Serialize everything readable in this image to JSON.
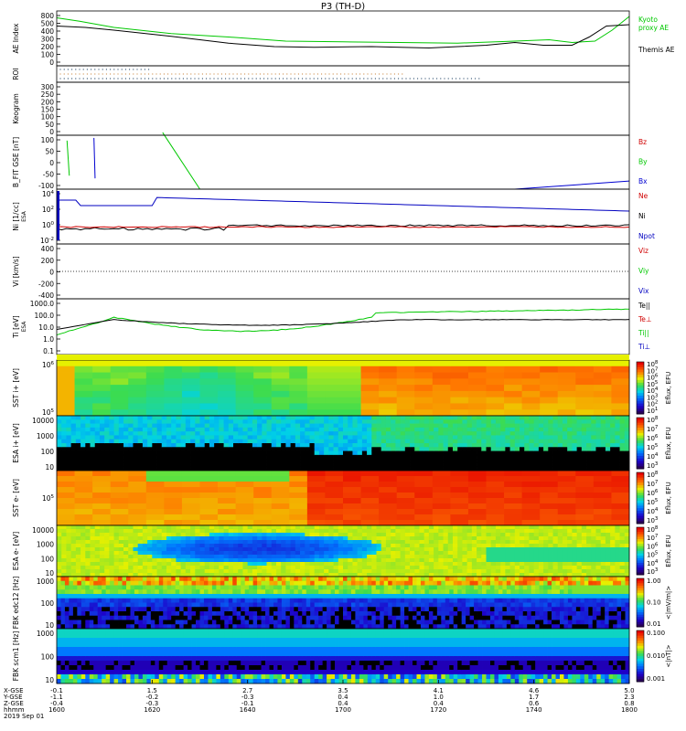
{
  "chart_data": {
    "type": "multi-panel",
    "title": "P3 (TH-D)",
    "xaxis": {
      "labels_left": [
        "X-GSE",
        "Y-GSE",
        "Z-GSE",
        "hhmm",
        "2019 Sep 01"
      ],
      "ticks": [
        {
          "x": 1600,
          "rows": [
            "-0.1",
            "-1.1",
            "-0.4",
            "1600"
          ]
        },
        {
          "x": 1620,
          "rows": [
            "1.5",
            "-0.2",
            "-0.3",
            "1620"
          ]
        },
        {
          "x": 1640,
          "rows": [
            "2.7",
            "-0.3",
            "-0.1",
            "1640"
          ]
        },
        {
          "x": 1700,
          "rows": [
            "3.5",
            "0.4",
            "0.4",
            "1700"
          ]
        },
        {
          "x": 1720,
          "rows": [
            "4.1",
            "1.0",
            "0.4",
            "1720"
          ]
        },
        {
          "x": 1740,
          "rows": [
            "4.6",
            "1.7",
            "0.6",
            "1740"
          ]
        },
        {
          "x": 1800,
          "rows": [
            "5.0",
            "2.3",
            "0.8",
            "1800"
          ]
        }
      ]
    },
    "panels": [
      {
        "id": "ae",
        "type": "line",
        "ylabel": "AE Index",
        "yticks": [
          "800",
          "500",
          "400",
          "300",
          "200",
          "100",
          "0"
        ],
        "series": [
          {
            "name": "Kyoto proxy AE",
            "color": "#00c800",
            "x": [
              0,
              0.04,
              0.1,
              0.2,
              0.3,
              0.4,
              0.5,
              0.6,
              0.7,
              0.8,
              0.86,
              0.9,
              0.94,
              0.97,
              1
            ],
            "y": [
              700,
              650,
              560,
              470,
              420,
              360,
              350,
              340,
              330,
              360,
              380,
              340,
              360,
              520,
              720
            ]
          },
          {
            "name": "Themis AE",
            "color": "#000000",
            "x": [
              0,
              0.05,
              0.1,
              0.2,
              0.3,
              0.38,
              0.45,
              0.55,
              0.65,
              0.75,
              0.8,
              0.85,
              0.9,
              0.93,
              0.96,
              1
            ],
            "y": [
              580,
              560,
              520,
              430,
              330,
              280,
              270,
              280,
              260,
              300,
              340,
              300,
              300,
              420,
              580,
              600
            ]
          }
        ]
      },
      {
        "id": "roi",
        "type": "dots",
        "ylabel": "ROI"
      },
      {
        "id": "keogram",
        "type": "blank",
        "ylabel": "Keogram",
        "yticks": [
          "300",
          "250",
          "200",
          "150",
          "100",
          "50",
          "0"
        ]
      },
      {
        "id": "bfit",
        "type": "line",
        "ylabel": "B_FIT GSE [nT]",
        "yticks": [
          "100",
          "50",
          "0",
          "-50",
          "-100"
        ],
        "series": [
          {
            "name": "Bz",
            "color": "#d00000"
          },
          {
            "name": "By",
            "color": "#00c800"
          },
          {
            "name": "Bx",
            "color": "#0000d0"
          }
        ]
      },
      {
        "id": "density",
        "type": "line",
        "ylabel": "Ni [1/cc]",
        "ylabel_small": "ESA",
        "yticks": [
          "10^4",
          "10^2",
          "10^0",
          "10^-2"
        ],
        "series": [
          {
            "name": "Ne",
            "color": "#d00000"
          },
          {
            "name": "Ni",
            "color": "#000000"
          },
          {
            "name": "Npot",
            "color": "#0000c0"
          }
        ]
      },
      {
        "id": "velocity",
        "type": "line",
        "ylabel": "Vi [km/s]",
        "yticks": [
          "400",
          "200",
          "0",
          "-200",
          "-400"
        ],
        "series": [
          {
            "name": "Viz",
            "color": "#d00000"
          },
          {
            "name": "Viy",
            "color": "#00c800"
          },
          {
            "name": "Vix",
            "color": "#0000c0"
          }
        ]
      },
      {
        "id": "temp",
        "type": "line",
        "ylabel": "Ti [eV]",
        "ylabel_small": "ESA",
        "yticks": [
          "1000.0",
          "100.0",
          "10.0",
          "1.0",
          "0.1"
        ],
        "series": [
          {
            "name": "Te||",
            "color": "#000000"
          },
          {
            "name": "Te⊥",
            "color": "#d00000"
          },
          {
            "name": "Ti||",
            "color": "#00c800"
          },
          {
            "name": "Ti⊥",
            "color": "#0000c0"
          }
        ]
      },
      {
        "id": "sst_i",
        "type": "heatmap",
        "ylabel": "SST i+ [eV]",
        "yticks": [
          "10^6",
          "10^5"
        ],
        "cbar_ticks": [
          "10^8",
          "10^7",
          "10^6",
          "10^5",
          "10^4",
          "10^3",
          "10^2",
          "10^1"
        ],
        "cbar_label": "Eflux, EFU"
      },
      {
        "id": "esa_i",
        "type": "heatmap",
        "ylabel": "ESA i+ [eV]",
        "yticks": [
          "10000",
          "1000",
          "100",
          "10"
        ],
        "cbar_ticks": [
          "10^8",
          "10^7",
          "10^6",
          "10^5",
          "10^4",
          "10^3"
        ],
        "cbar_label": "Eflux, EFU"
      },
      {
        "id": "sst_e",
        "type": "heatmap",
        "ylabel": "SST e- [eV]",
        "yticks": [
          "10^5"
        ],
        "cbar_ticks": [
          "10^8",
          "10^7",
          "10^6",
          "10^5",
          "10^4",
          "10^3"
        ],
        "cbar_label": "Eflux, EFU"
      },
      {
        "id": "esa_e",
        "type": "heatmap",
        "ylabel": "ESA e- [eV]",
        "yticks": [
          "10000",
          "1000",
          "100",
          "10"
        ],
        "cbar_ticks": [
          "10^8",
          "10^7",
          "10^6",
          "10^5",
          "10^4",
          "10^3"
        ],
        "cbar_label": "Eflux, EFU"
      },
      {
        "id": "fbk_e",
        "type": "heatmap",
        "ylabel": "FBK edc12 [Hz]",
        "yticks": [
          "1000",
          "100",
          "10"
        ],
        "cbar_ticks": [
          "1.00",
          "0.10",
          "0.01"
        ],
        "cbar_label": "<|mV/m|>"
      },
      {
        "id": "fbk_b",
        "type": "heatmap",
        "ylabel": "FBK scm1 [Hz]",
        "yticks": [
          "1000",
          "100",
          "10"
        ],
        "cbar_ticks": [
          "0.100",
          "0.010",
          "0.001"
        ],
        "cbar_label": "<|nT|>"
      }
    ]
  }
}
